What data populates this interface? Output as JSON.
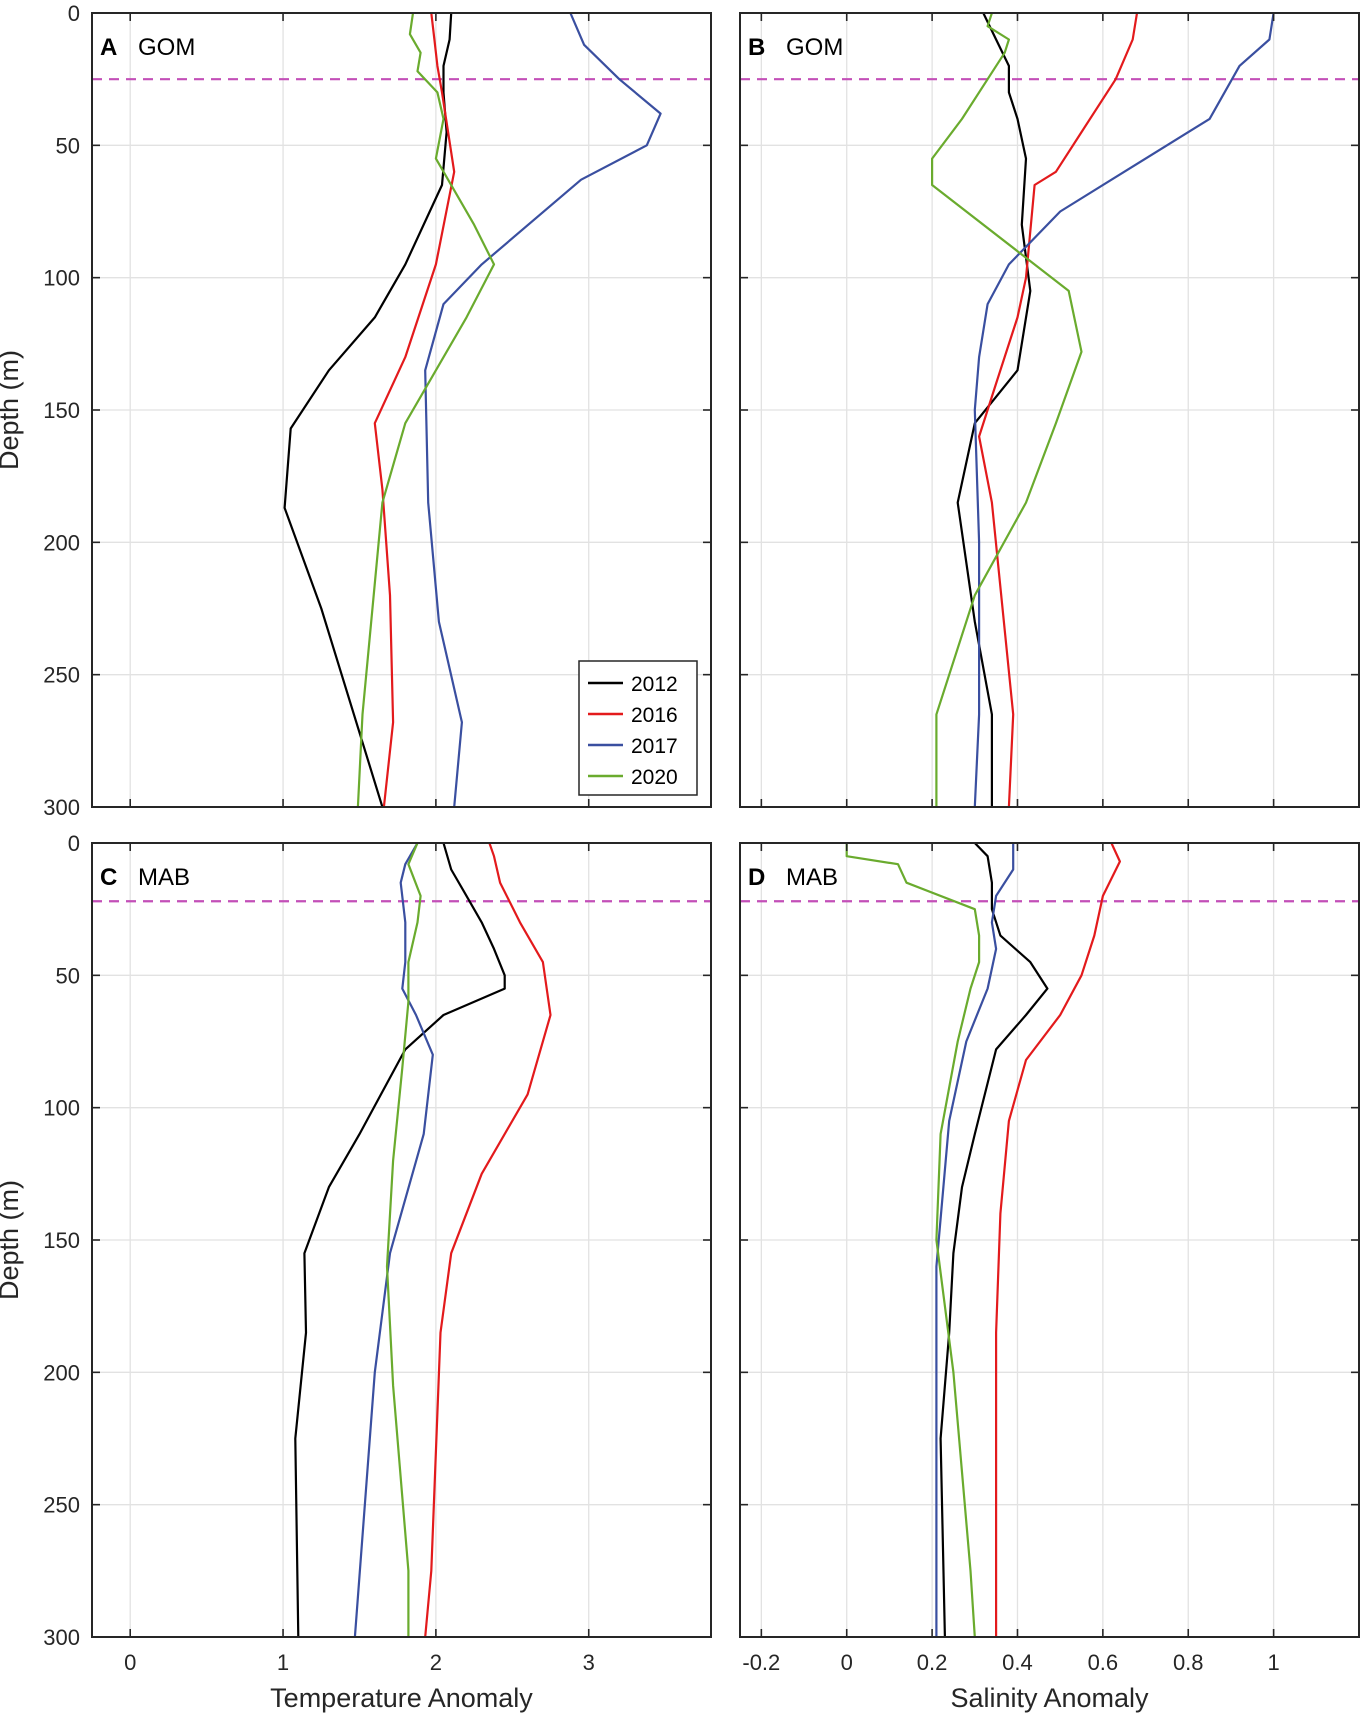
{
  "chart_data": [
    {
      "type": "line",
      "panel": "A",
      "region": "GOM",
      "xlabel": "",
      "ylabel": "Depth (m)",
      "xlim": [
        -0.25,
        3.8
      ],
      "ylim": [
        0,
        300
      ],
      "y_reversed": true,
      "xticks": [
        0,
        1,
        2,
        3
      ],
      "yticks": [
        0,
        50,
        100,
        150,
        200,
        250,
        300
      ],
      "grid": true,
      "reference_depth": 25,
      "legend": {
        "placement": "bottom-right"
      },
      "series": [
        {
          "name": "2012",
          "color": "#000000",
          "x": [
            2.1,
            2.09,
            2.05,
            2.05,
            2.07,
            2.04,
            1.8,
            1.6,
            1.3,
            1.05,
            1.01,
            1.25,
            1.65
          ],
          "y": [
            0,
            10,
            20,
            30,
            45,
            65,
            95,
            115,
            135,
            157,
            187,
            225,
            300
          ]
        },
        {
          "name": "2016",
          "color": "#e31a1c",
          "x": [
            1.97,
            1.99,
            2.01,
            2.04,
            2.08,
            2.12,
            2.0,
            1.8,
            1.6,
            1.65,
            1.7,
            1.72,
            1.66
          ],
          "y": [
            0,
            10,
            20,
            30,
            45,
            60,
            95,
            130,
            155,
            180,
            220,
            268,
            300
          ]
        },
        {
          "name": "2017",
          "color": "#3a4fa0",
          "x": [
            2.88,
            2.97,
            3.2,
            3.47,
            3.38,
            2.95,
            2.3,
            2.05,
            1.93,
            1.95,
            2.02,
            2.17,
            2.12
          ],
          "y": [
            0,
            12,
            25,
            38,
            50,
            63,
            95,
            110,
            135,
            185,
            230,
            268,
            300
          ]
        },
        {
          "name": "2020",
          "color": "#6aab2e",
          "x": [
            1.85,
            1.83,
            1.9,
            1.88,
            2.01,
            2.05,
            2.0,
            2.25,
            2.38,
            2.2,
            1.8,
            1.65,
            1.52,
            1.49
          ],
          "y": [
            0,
            8,
            15,
            22,
            30,
            40,
            55,
            80,
            95,
            115,
            155,
            185,
            265,
            300
          ]
        }
      ]
    },
    {
      "type": "line",
      "panel": "B",
      "region": "GOM",
      "xlabel": "",
      "ylabel": "",
      "xlim": [
        -0.25,
        1.2
      ],
      "ylim": [
        0,
        300
      ],
      "y_reversed": true,
      "xticks": [
        -0.2,
        0,
        0.2,
        0.4,
        0.6,
        0.8,
        1
      ],
      "yticks": [
        0,
        50,
        100,
        150,
        200,
        250,
        300
      ],
      "grid": true,
      "reference_depth": 25,
      "series": [
        {
          "name": "2012",
          "color": "#000000",
          "x": [
            0.32,
            0.35,
            0.38,
            0.38,
            0.4,
            0.42,
            0.41,
            0.43,
            0.4,
            0.3,
            0.26,
            0.3,
            0.34,
            0.34
          ],
          "y": [
            0,
            10,
            20,
            30,
            40,
            55,
            80,
            105,
            135,
            155,
            185,
            230,
            265,
            300
          ]
        },
        {
          "name": "2016",
          "color": "#e31a1c",
          "x": [
            0.68,
            0.67,
            0.63,
            0.55,
            0.49,
            0.44,
            0.42,
            0.4,
            0.35,
            0.31,
            0.34,
            0.39,
            0.38
          ],
          "y": [
            0,
            10,
            25,
            45,
            60,
            65,
            100,
            115,
            140,
            160,
            185,
            265,
            300
          ]
        },
        {
          "name": "2017",
          "color": "#3a4fa0",
          "x": [
            1.0,
            0.99,
            0.92,
            0.85,
            0.65,
            0.5,
            0.38,
            0.33,
            0.31,
            0.3,
            0.31,
            0.31,
            0.3
          ],
          "y": [
            0,
            10,
            20,
            40,
            60,
            75,
            95,
            110,
            130,
            150,
            200,
            265,
            300
          ]
        },
        {
          "name": "2020",
          "color": "#6aab2e",
          "x": [
            0.34,
            0.33,
            0.38,
            0.37,
            0.33,
            0.27,
            0.2,
            0.2,
            0.4,
            0.52,
            0.55,
            0.49,
            0.42,
            0.3,
            0.21,
            0.21
          ],
          "y": [
            0,
            5,
            10,
            15,
            25,
            40,
            55,
            65,
            90,
            105,
            128,
            155,
            185,
            220,
            265,
            300
          ]
        }
      ]
    },
    {
      "type": "line",
      "panel": "C",
      "region": "MAB",
      "xlabel": "Temperature Anomaly",
      "ylabel": "Depth (m)",
      "xlim": [
        -0.25,
        3.8
      ],
      "ylim": [
        0,
        300
      ],
      "y_reversed": true,
      "xticks": [
        0,
        1,
        2,
        3
      ],
      "yticks": [
        0,
        50,
        100,
        150,
        200,
        250,
        300
      ],
      "grid": true,
      "reference_depth": 22,
      "series": [
        {
          "name": "2012",
          "color": "#000000",
          "x": [
            2.05,
            2.1,
            2.2,
            2.3,
            2.38,
            2.45,
            2.45,
            2.05,
            1.8,
            1.5,
            1.3,
            1.14,
            1.15,
            1.08,
            1.1
          ],
          "y": [
            0,
            10,
            20,
            30,
            40,
            50,
            55,
            65,
            78,
            110,
            130,
            155,
            185,
            225,
            300
          ]
        },
        {
          "name": "2016",
          "color": "#e31a1c",
          "x": [
            2.35,
            2.38,
            2.42,
            2.55,
            2.7,
            2.75,
            2.6,
            2.3,
            2.1,
            2.03,
            2.0,
            1.97,
            1.93
          ],
          "y": [
            0,
            5,
            15,
            30,
            45,
            65,
            95,
            125,
            155,
            185,
            230,
            275,
            300
          ]
        },
        {
          "name": "2017",
          "color": "#3a4fa0",
          "x": [
            1.88,
            1.8,
            1.77,
            1.8,
            1.8,
            1.78,
            1.87,
            1.98,
            1.92,
            1.7,
            1.6,
            1.47
          ],
          "y": [
            0,
            8,
            15,
            30,
            45,
            55,
            65,
            80,
            110,
            155,
            200,
            300
          ]
        },
        {
          "name": "2020",
          "color": "#6aab2e",
          "x": [
            1.88,
            1.82,
            1.9,
            1.88,
            1.82,
            1.82,
            1.78,
            1.72,
            1.68,
            1.72,
            1.82,
            1.82
          ],
          "y": [
            0,
            8,
            20,
            30,
            45,
            60,
            85,
            120,
            160,
            205,
            275,
            300
          ]
        }
      ]
    },
    {
      "type": "line",
      "panel": "D",
      "region": "MAB",
      "xlabel": "Salinity Anomaly",
      "ylabel": "",
      "xlim": [
        -0.25,
        1.2
      ],
      "ylim": [
        0,
        300
      ],
      "y_reversed": true,
      "xticks": [
        -0.2,
        0,
        0.2,
        0.4,
        0.6,
        0.8,
        1
      ],
      "yticks": [
        0,
        50,
        100,
        150,
        200,
        250,
        300
      ],
      "grid": true,
      "reference_depth": 22,
      "series": [
        {
          "name": "2012",
          "color": "#000000",
          "x": [
            0.3,
            0.33,
            0.34,
            0.34,
            0.36,
            0.43,
            0.47,
            0.42,
            0.35,
            0.3,
            0.27,
            0.25,
            0.24,
            0.22,
            0.23
          ],
          "y": [
            0,
            5,
            15,
            25,
            35,
            45,
            55,
            65,
            78,
            110,
            130,
            155,
            185,
            225,
            300
          ]
        },
        {
          "name": "2016",
          "color": "#e31a1c",
          "x": [
            0.62,
            0.64,
            0.6,
            0.58,
            0.55,
            0.5,
            0.42,
            0.38,
            0.36,
            0.35,
            0.35,
            0.35
          ],
          "y": [
            0,
            7,
            20,
            35,
            50,
            65,
            82,
            105,
            140,
            185,
            270,
            300
          ]
        },
        {
          "name": "2017",
          "color": "#3a4fa0",
          "x": [
            0.39,
            0.39,
            0.35,
            0.34,
            0.35,
            0.33,
            0.28,
            0.24,
            0.21,
            0.21,
            0.21
          ],
          "y": [
            0,
            10,
            20,
            30,
            40,
            55,
            75,
            105,
            160,
            200,
            300
          ]
        },
        {
          "name": "2020",
          "color": "#6aab2e",
          "x": [
            0.0,
            0.0,
            0.12,
            0.14,
            0.3,
            0.31,
            0.31,
            0.29,
            0.26,
            0.22,
            0.21,
            0.25,
            0.29,
            0.3
          ],
          "y": [
            0,
            5,
            8,
            15,
            25,
            35,
            45,
            55,
            75,
            110,
            150,
            200,
            275,
            300
          ]
        }
      ]
    }
  ]
}
